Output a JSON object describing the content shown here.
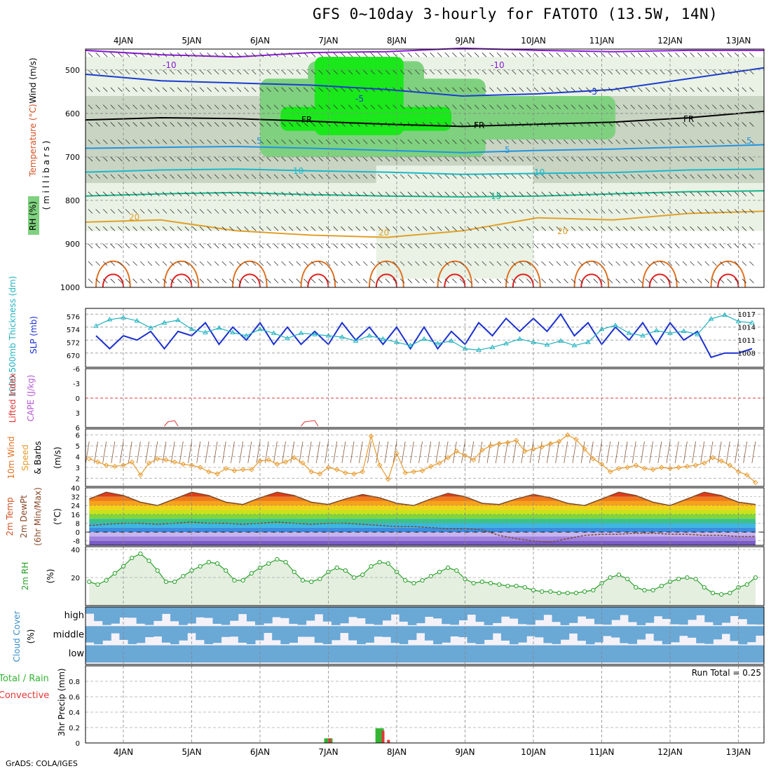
{
  "title": "GFS 0~10day 3-hourly for FATOTO (13.5W, 14N)",
  "footer": "GrADS: COLA/IGES",
  "x_axis_dates": [
    "4JAN",
    "5JAN",
    "6JAN",
    "7JAN",
    "8JAN",
    "9JAN",
    "10JAN",
    "11JAN",
    "12JAN",
    "13JAN"
  ],
  "panels": {
    "upper": {
      "ylabel_y": "( m i l l i b a r s )",
      "ylabel_rh": "RH (%)",
      "ylabel_temp": "Temperature (°C)",
      "ylabel_wind": "Wind (m/s)",
      "ticks": [
        "500",
        "600",
        "700",
        "800",
        "900",
        "1000"
      ],
      "contour_labels": [
        "-10",
        "-10",
        "-5",
        "-5",
        "5",
        "5",
        "5",
        "10",
        "10",
        "15",
        "20",
        "20",
        "20",
        "FR",
        "FR",
        "FR"
      ]
    },
    "slp": {
      "ylabel_left": "1000-500mb Thickness (dm)",
      "ylabel_right": "SLP (mb)",
      "left_ticks": [
        "576",
        "574",
        "572",
        "670"
      ],
      "right_ticks": [
        "1017",
        "1014",
        "1011",
        "1008"
      ]
    },
    "cape": {
      "ylabel_li": "Lifted Index",
      "ylabel_cape": "CAPE (J/kg)",
      "ticks": [
        "6",
        "3",
        "0",
        "-3",
        "-6"
      ]
    },
    "wind10": {
      "ylabel_1": "10m Wind",
      "ylabel_2": "Speed",
      "ylabel_3": "& Barbs",
      "units": "(m/s)",
      "ticks": [
        "6",
        "5",
        "4",
        "3",
        "2"
      ]
    },
    "temp2m": {
      "ylabel_1": "2m Temp",
      "ylabel_2": "2m DewPt",
      "ylabel_3": "(6hr Min/Max)",
      "units": "(°C)",
      "ticks": [
        "40",
        "32",
        "24",
        "16",
        "8",
        "0",
        "-8"
      ]
    },
    "rh2m": {
      "ylabel": "2m RH",
      "units": "(%)",
      "ticks": [
        "40",
        "20"
      ]
    },
    "cloud": {
      "ylabel": "Cloud Cover",
      "units": "(%)",
      "levels": [
        "high",
        "middle",
        "low"
      ]
    },
    "precip": {
      "ylabel_1": "Total / Rain",
      "ylabel_2": "Convective",
      "ylabel_3": "3hr Precip (mm)",
      "ticks": [
        "0.8",
        "0.6",
        "0.4",
        "0.2",
        "0"
      ],
      "run_total": "Run Total = 0.25"
    }
  },
  "colors": {
    "rh_light": "#e9f2e4",
    "rh_mid": "#c9d4c3",
    "rh_green": "#7fd17f",
    "rh_bright": "#1ae81a",
    "slp_line": "#1a2fd1",
    "thickness_line": "#22b3c0",
    "wind_speed": "#e79a2c",
    "rh2m_line": "#27a127",
    "cloud_fill": "#6aa8d6",
    "precip_total": "#33b533",
    "precip_conv": "#e23737"
  },
  "chart_data": [
    {
      "type": "line",
      "title": "3hr Precip / SLP / Thickness",
      "series": [
        {
          "name": "SLP (mb)",
          "x_days": [
            3.6,
            3.8,
            4.0,
            4.2,
            4.4,
            4.6,
            4.8,
            5.0,
            5.2,
            5.4,
            5.6,
            5.8,
            6.0,
            6.2,
            6.4,
            6.6,
            6.8,
            7.0,
            7.2,
            7.4,
            7.6,
            7.8,
            8.0,
            8.2,
            8.4,
            8.6,
            8.8,
            9.0,
            9.2,
            9.4,
            9.6,
            9.8,
            10.0,
            10.2,
            10.4,
            10.6,
            10.8,
            11.0,
            11.2,
            11.4,
            11.6,
            11.8,
            12.0,
            12.2,
            12.4,
            12.6,
            12.8,
            13.0,
            13.2
          ],
          "values": [
            1012,
            1009,
            1012,
            1011,
            1013,
            1009,
            1013,
            1012,
            1015,
            1010,
            1014,
            1011,
            1015,
            1010,
            1014,
            1010,
            1013,
            1010,
            1015,
            1011,
            1014,
            1010,
            1014,
            1009,
            1014,
            1009,
            1013,
            1010,
            1015,
            1012,
            1016,
            1013,
            1016,
            1013,
            1017,
            1012,
            1015,
            1010,
            1014,
            1011,
            1015,
            1010,
            1015,
            1011,
            1013,
            1007,
            1008,
            1008,
            1009
          ]
        },
        {
          "name": "1000-500mb Thickness (dm)",
          "x_days": [
            3.6,
            3.8,
            4.0,
            4.2,
            4.4,
            4.6,
            4.8,
            5.0,
            5.2,
            5.4,
            5.6,
            5.8,
            6.0,
            6.2,
            6.4,
            6.6,
            6.8,
            7.0,
            7.2,
            7.4,
            7.6,
            7.8,
            8.0,
            8.2,
            8.4,
            8.6,
            8.8,
            9.0,
            9.2,
            9.4,
            9.6,
            9.8,
            10.0,
            10.2,
            10.4,
            10.6,
            10.8,
            11.0,
            11.2,
            11.4,
            11.6,
            11.8,
            12.0,
            12.2,
            12.4,
            12.6,
            12.8,
            13.0,
            13.2
          ],
          "values": [
            574.5,
            575.5,
            575.8,
            575.3,
            574.2,
            575.0,
            575.4,
            574.0,
            573.5,
            574.2,
            573.5,
            573.0,
            574.0,
            573.4,
            572.6,
            573.4,
            573.2,
            573.0,
            572.8,
            572.2,
            573.0,
            572.5,
            572.0,
            571.5,
            572.5,
            571.8,
            572.2,
            571.0,
            570.8,
            571.2,
            571.8,
            572.5,
            572.0,
            571.6,
            572.2,
            571.5,
            572.0,
            574.0,
            574.6,
            573.4,
            573.0,
            573.8,
            573.4,
            573.7,
            573.2,
            575.6,
            576.2,
            575.2,
            575.0
          ]
        }
      ]
    },
    {
      "type": "line",
      "title": "10m Wind Speed (m/s)",
      "x_days": [
        3.5,
        3.625,
        3.75,
        3.875,
        4.0,
        4.125,
        4.25,
        4.375,
        4.5,
        4.625,
        4.75,
        4.875,
        5.0,
        5.125,
        5.25,
        5.375,
        5.5,
        5.625,
        5.75,
        5.875,
        6.0,
        6.125,
        6.25,
        6.375,
        6.5,
        6.625,
        6.75,
        6.875,
        7.0,
        7.125,
        7.25,
        7.375,
        7.5,
        7.625,
        7.75,
        7.875,
        8.0,
        8.125,
        8.25,
        8.375,
        8.5,
        8.625,
        8.75,
        8.875,
        9.0,
        9.125,
        9.25,
        9.375,
        9.5,
        9.625,
        9.75,
        9.875,
        10.0,
        10.125,
        10.25,
        10.375,
        10.5,
        10.625,
        10.75,
        10.875,
        11.0,
        11.125,
        11.25,
        11.375,
        11.5,
        11.625,
        11.75,
        11.875,
        12.0,
        12.125,
        12.25,
        12.375,
        12.5,
        12.625,
        12.75,
        12.875,
        13.0,
        13.125,
        13.25
      ],
      "values": [
        3.8,
        3.5,
        3.2,
        3.1,
        3.2,
        3.5,
        2.3,
        3.4,
        3.8,
        3.7,
        3.5,
        3.3,
        3.2,
        3.0,
        2.6,
        2.4,
        2.9,
        2.7,
        2.8,
        2.8,
        3.6,
        3.7,
        3.3,
        3.5,
        3.9,
        3.4,
        2.6,
        2.4,
        3.0,
        2.8,
        2.5,
        2.4,
        2.6,
        5.9,
        3.2,
        1.9,
        4.3,
        2.5,
        2.6,
        2.7,
        3.1,
        3.4,
        3.9,
        4.5,
        4.1,
        3.7,
        4.6,
        5.0,
        5.2,
        5.3,
        5.5,
        4.5,
        4.7,
        4.9,
        5.2,
        5.4,
        6.0,
        5.6,
        4.7,
        3.8,
        3.3,
        2.6,
        2.9,
        3.0,
        3.2,
        2.9,
        2.8,
        3.0,
        2.9,
        3.0,
        3.1,
        3.2,
        3.4,
        3.9,
        3.6,
        3.2,
        2.6,
        2.3,
        1.6
      ]
    },
    {
      "type": "area",
      "title": "2m Temp (°C)",
      "x_days": [
        3.5,
        3.75,
        4.0,
        4.25,
        4.5,
        4.75,
        5.0,
        5.25,
        5.5,
        5.75,
        6.0,
        6.25,
        6.5,
        6.75,
        7.0,
        7.25,
        7.5,
        7.75,
        8.0,
        8.25,
        8.5,
        8.75,
        9.0,
        9.25,
        9.5,
        9.75,
        10.0,
        10.25,
        10.5,
        10.75,
        11.0,
        11.25,
        11.5,
        11.75,
        12.0,
        12.25,
        12.5,
        12.75,
        13.0,
        13.25
      ],
      "temp": [
        30,
        36,
        33,
        27,
        24,
        30,
        36,
        33,
        27,
        25,
        31,
        36,
        33,
        27,
        25,
        30,
        34,
        31,
        26,
        24,
        30,
        35,
        32,
        26,
        25,
        30,
        34,
        31,
        26,
        24,
        30,
        36,
        33,
        27,
        24,
        30,
        36,
        33,
        27,
        25
      ],
      "dewpt": [
        6,
        7,
        8,
        8,
        7,
        8,
        9,
        8,
        8,
        7,
        8,
        9,
        8,
        7,
        8,
        8,
        7,
        6,
        5,
        5,
        4,
        3,
        3,
        2,
        -3,
        -6,
        -8,
        -9,
        -6,
        -3,
        -2,
        -2,
        -1,
        -1,
        -2,
        -2,
        -3,
        -3,
        -4,
        -4
      ],
      "ylim": [
        -12,
        40
      ]
    },
    {
      "type": "area",
      "title": "2m RH (%)",
      "x_days": [
        3.5,
        3.625,
        3.75,
        3.875,
        4.0,
        4.125,
        4.25,
        4.375,
        4.5,
        4.625,
        4.75,
        4.875,
        5.0,
        5.125,
        5.25,
        5.375,
        5.5,
        5.625,
        5.75,
        5.875,
        6.0,
        6.125,
        6.25,
        6.375,
        6.5,
        6.625,
        6.75,
        6.875,
        7.0,
        7.125,
        7.25,
        7.375,
        7.5,
        7.625,
        7.75,
        7.875,
        8.0,
        8.125,
        8.25,
        8.375,
        8.5,
        8.625,
        8.75,
        8.875,
        9.0,
        9.125,
        9.25,
        9.375,
        9.5,
        9.625,
        9.75,
        9.875,
        10.0,
        10.125,
        10.25,
        10.375,
        10.5,
        10.625,
        10.75,
        10.875,
        11.0,
        11.125,
        11.25,
        11.375,
        11.5,
        11.625,
        11.75,
        11.875,
        12.0,
        12.125,
        12.25,
        12.375,
        12.5,
        12.625,
        12.75,
        12.875,
        13.0,
        13.125,
        13.25
      ],
      "values": [
        17,
        15,
        18,
        23,
        28,
        34,
        37,
        32,
        25,
        17,
        17,
        21,
        25,
        28,
        31,
        30,
        25,
        18,
        18,
        23,
        27,
        30,
        33,
        31,
        24,
        18,
        17,
        19,
        24,
        27,
        25,
        20,
        22,
        28,
        31,
        30,
        24,
        18,
        16,
        18,
        21,
        24,
        27,
        25,
        19,
        16,
        17,
        16,
        15,
        14,
        14,
        13,
        11,
        10,
        10,
        9,
        9,
        9,
        10,
        11,
        16,
        20,
        22,
        19,
        13,
        11,
        11,
        14,
        17,
        19,
        20,
        19,
        13,
        9,
        8,
        9,
        13,
        15,
        20
      ],
      "ylim": [
        0,
        40
      ]
    },
    {
      "type": "bar",
      "title": "3hr Precip (mm)",
      "series": [
        {
          "name": "Total / Rain",
          "x_days": [
            7.0,
            7.75
          ],
          "values": [
            0.06,
            0.19
          ]
        },
        {
          "name": "Convective",
          "x_days": [
            7.02,
            7.8,
            7.88
          ],
          "values": [
            0.06,
            0.16,
            0.04
          ]
        }
      ],
      "ylim": [
        0,
        1.0
      ]
    }
  ]
}
